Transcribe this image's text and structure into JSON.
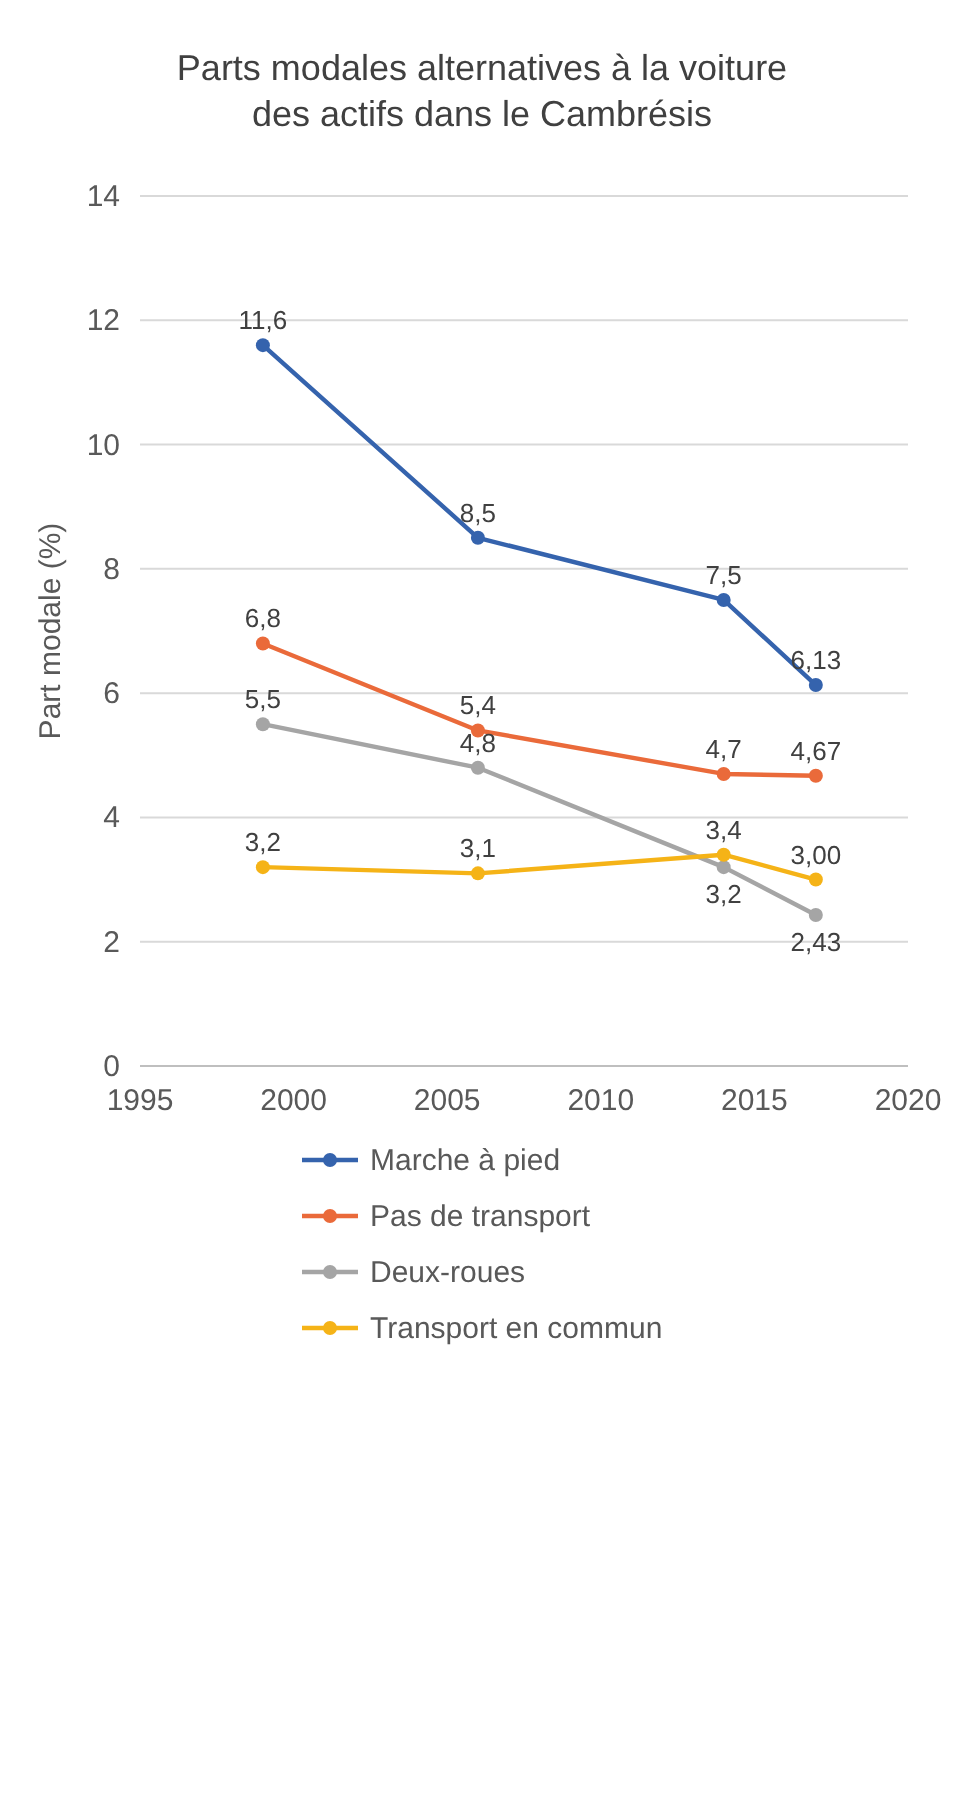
{
  "chart_data": {
    "type": "line",
    "title": "Parts modales alternatives à la voiture des actifs dans le Cambrésis",
    "ylabel": "Part modale (%)",
    "x": [
      1999,
      2006,
      2014,
      2017
    ],
    "series": [
      {
        "name": "Marche à pied",
        "color": "#3563ad",
        "values": [
          11.6,
          8.5,
          7.5,
          6.13
        ],
        "value_labels": [
          "11,6",
          "8,5",
          "7,5",
          "6,13"
        ]
      },
      {
        "name": "Pas de transport",
        "color": "#ea6a3a",
        "values": [
          6.8,
          5.4,
          4.7,
          4.67
        ],
        "value_labels": [
          "6,8",
          "5,4",
          "4,7",
          "4,67"
        ]
      },
      {
        "name": "Deux-roues",
        "color": "#a5a5a5",
        "values": [
          5.5,
          4.8,
          3.2,
          2.43
        ],
        "value_labels": [
          "5,5",
          "4,8",
          "3,2",
          "2,43"
        ]
      },
      {
        "name": "Transport en commun",
        "color": "#f5b317",
        "values": [
          3.2,
          3.1,
          3.4,
          3.0
        ],
        "value_labels": [
          "3,2",
          "3,1",
          "3,4",
          "3,00"
        ]
      }
    ],
    "xlim": [
      1995,
      2020
    ],
    "xticks": [
      1995,
      2000,
      2005,
      2010,
      2015,
      2020
    ],
    "ylim": [
      0,
      14
    ],
    "yticks": [
      0,
      2,
      4,
      6,
      8,
      10,
      12,
      14
    ],
    "grid": "y",
    "legend": "bottom",
    "marker": "circle",
    "line_style": "solid"
  }
}
